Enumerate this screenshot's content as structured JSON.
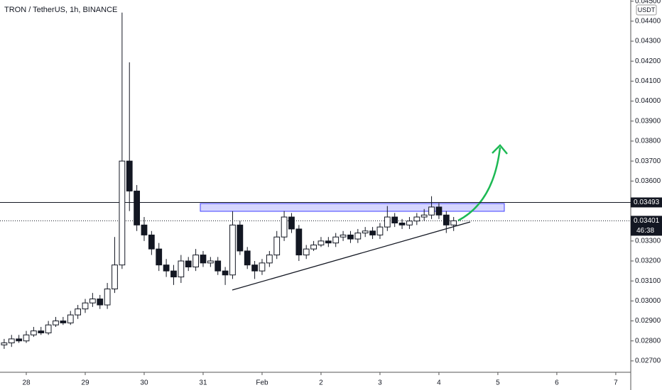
{
  "chart_data": {
    "type": "candlestick",
    "title": "TRON / TetherUS, 1h, BINANCE",
    "currency": "USDT",
    "x": [
      -9,
      -6,
      -3,
      0,
      3,
      6,
      9,
      12,
      15,
      18,
      21,
      24,
      27,
      30,
      33,
      36,
      39,
      42,
      45,
      48,
      51,
      54,
      57,
      60,
      63,
      66,
      69,
      72,
      75,
      78,
      81,
      84,
      87,
      90,
      93,
      96,
      99,
      102,
      105,
      108,
      111,
      114,
      117,
      120,
      123,
      126,
      129,
      132,
      135,
      138,
      141,
      144,
      147,
      150,
      153,
      156,
      159,
      162,
      165,
      168,
      171,
      174
    ],
    "open": [
      0.0278,
      0.0279,
      0.0281,
      0.028,
      0.0283,
      0.0285,
      0.0284,
      0.0288,
      0.029,
      0.0289,
      0.0293,
      0.0296,
      0.0299,
      0.0301,
      0.0298,
      0.0306,
      0.0318,
      0.037,
      0.0355,
      0.0338,
      0.0333,
      0.0326,
      0.0318,
      0.0315,
      0.0312,
      0.032,
      0.0317,
      0.0323,
      0.0319,
      0.032,
      0.0315,
      0.0313,
      0.0338,
      0.0325,
      0.0318,
      0.0315,
      0.0319,
      0.0323,
      0.0332,
      0.0342,
      0.0336,
      0.0323,
      0.0326,
      0.0328,
      0.033,
      0.0329,
      0.0332,
      0.0333,
      0.0331,
      0.0334,
      0.0335,
      0.0333,
      0.0337,
      0.0342,
      0.0339,
      0.0338,
      0.034,
      0.0342,
      0.0343,
      0.0347,
      0.0343,
      0.0338
    ],
    "high": [
      0.0281,
      0.0283,
      0.0283,
      0.0285,
      0.0287,
      0.0287,
      0.029,
      0.0292,
      0.0292,
      0.0295,
      0.0298,
      0.0301,
      0.0304,
      0.0303,
      0.0309,
      0.0332,
      0.04443,
      0.04194,
      0.0358,
      0.0342,
      0.0335,
      0.0329,
      0.0321,
      0.0318,
      0.0323,
      0.0322,
      0.0326,
      0.0325,
      0.0322,
      0.0322,
      0.0317,
      0.03449,
      0.034,
      0.0327,
      0.032,
      0.0321,
      0.0325,
      0.0335,
      0.0345,
      0.0344,
      0.0338,
      0.0328,
      0.033,
      0.0332,
      0.0332,
      0.0334,
      0.0335,
      0.0335,
      0.0336,
      0.0337,
      0.0337,
      0.0339,
      0.03475,
      0.0344,
      0.0341,
      0.0342,
      0.0344,
      0.0346,
      0.03524,
      0.0349,
      0.0345,
      0.0342
    ],
    "low": [
      0.0276,
      0.0277,
      0.0279,
      0.0279,
      0.0282,
      0.0283,
      0.0283,
      0.0287,
      0.0288,
      0.0288,
      0.0291,
      0.0294,
      0.0297,
      0.0296,
      0.0296,
      0.0304,
      0.0316,
      0.0345,
      0.0335,
      0.033,
      0.0323,
      0.0315,
      0.0312,
      0.0308,
      0.0309,
      0.0315,
      0.0315,
      0.0317,
      0.0317,
      0.0313,
      0.0308,
      0.0311,
      0.0323,
      0.0316,
      0.0311,
      0.0313,
      0.0317,
      0.0321,
      0.033,
      0.0334,
      0.032,
      0.0321,
      0.0325,
      0.0327,
      0.0327,
      0.0327,
      0.033,
      0.0329,
      0.0329,
      0.0332,
      0.0331,
      0.0331,
      0.0335,
      0.0337,
      0.0336,
      0.0336,
      0.0338,
      0.034,
      0.0341,
      0.0341,
      0.0334,
      0.0335
    ],
    "close": [
      0.0279,
      0.0281,
      0.028,
      0.0283,
      0.0285,
      0.0284,
      0.0288,
      0.029,
      0.0289,
      0.0293,
      0.0296,
      0.0299,
      0.0301,
      0.0298,
      0.0306,
      0.0318,
      0.037,
      0.0355,
      0.0338,
      0.0333,
      0.0326,
      0.0318,
      0.0315,
      0.0312,
      0.032,
      0.0317,
      0.0323,
      0.0319,
      0.032,
      0.0315,
      0.0313,
      0.0338,
      0.0325,
      0.0318,
      0.0315,
      0.0319,
      0.0323,
      0.0332,
      0.0342,
      0.0336,
      0.0323,
      0.0326,
      0.0328,
      0.033,
      0.0329,
      0.0332,
      0.0333,
      0.0331,
      0.0334,
      0.0335,
      0.0333,
      0.0337,
      0.0342,
      0.0339,
      0.0338,
      0.034,
      0.0342,
      0.0343,
      0.0347,
      0.0343,
      0.0338,
      0.03401
    ],
    "xlim": [
      -10.7,
      246.1
    ],
    "xticks": [
      {
        "value": 0,
        "label": "28"
      },
      {
        "value": 24,
        "label": "29"
      },
      {
        "value": 48,
        "label": "30"
      },
      {
        "value": 72,
        "label": "31"
      },
      {
        "value": 96,
        "label": "Feb"
      },
      {
        "value": 120,
        "label": "2"
      },
      {
        "value": 144,
        "label": "3"
      },
      {
        "value": 168,
        "label": "4"
      },
      {
        "value": 192,
        "label": "5"
      },
      {
        "value": 216,
        "label": "6"
      },
      {
        "value": 240,
        "label": "7"
      }
    ],
    "ylim": [
      0.02643,
      0.04506
    ],
    "yticks": [
      {
        "value": 0.027,
        "label": "0.02700"
      },
      {
        "value": 0.028,
        "label": "0.02800"
      },
      {
        "value": 0.029,
        "label": "0.02900"
      },
      {
        "value": 0.03,
        "label": "0.03000"
      },
      {
        "value": 0.031,
        "label": "0.03100"
      },
      {
        "value": 0.032,
        "label": "0.03200"
      },
      {
        "value": 0.033,
        "label": "0.03300"
      },
      {
        "value": 0.034,
        "label": "0.03400"
      },
      {
        "value": 0.035,
        "label": "0.03500"
      },
      {
        "value": 0.036,
        "label": "0.03600"
      },
      {
        "value": 0.037,
        "label": "0.03700"
      },
      {
        "value": 0.038,
        "label": "0.03800"
      },
      {
        "value": 0.039,
        "label": "0.03900"
      },
      {
        "value": 0.04,
        "label": "0.04000"
      },
      {
        "value": 0.041,
        "label": "0.04100"
      },
      {
        "value": 0.042,
        "label": "0.04200"
      },
      {
        "value": 0.043,
        "label": "0.04300"
      },
      {
        "value": 0.044,
        "label": "0.04400"
      },
      {
        "value": 0.045,
        "label": "0.04500"
      }
    ],
    "level_line": {
      "value": 0.03493,
      "label": "0.03493"
    },
    "last_price": {
      "value": 0.03401,
      "label": "0.03401"
    },
    "countdown": "46:38"
  }
}
